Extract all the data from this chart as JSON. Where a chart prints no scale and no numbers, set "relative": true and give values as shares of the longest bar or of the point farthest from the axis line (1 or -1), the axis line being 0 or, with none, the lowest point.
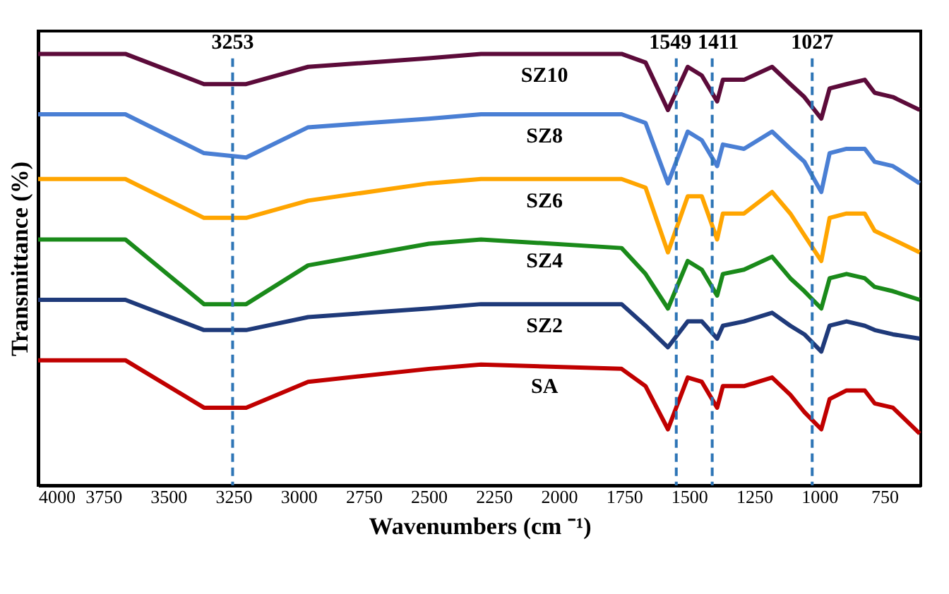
{
  "chart_data": {
    "type": "line",
    "relative": true,
    "xlabel": "Wavenumbers (cm ⁻¹)",
    "ylabel": "Transmittance (%)",
    "x": [
      4000,
      3665,
      3363,
      3201,
      2963,
      2499,
      2299,
      1759,
      1667,
      1581,
      1505,
      1451,
      1392,
      1370,
      1289,
      1181,
      1111,
      1057,
      992,
      960,
      895,
      825,
      787,
      717,
      614
    ],
    "xlim": [
      4000,
      610
    ],
    "xticks": [
      4000,
      3750,
      3500,
      3250,
      3000,
      2750,
      2500,
      2250,
      2000,
      1750,
      1500,
      1250,
      1000,
      750
    ],
    "grid": false,
    "line_style": "solid",
    "marker": "none",
    "series": [
      {
        "name": "SZ10",
        "color": "#5c0b3a",
        "values": [
          1,
          1,
          0.93,
          0.93,
          0.97,
          0.99,
          1,
          1,
          0.98,
          0.87,
          0.97,
          0.95,
          0.89,
          0.94,
          0.94,
          0.97,
          0.93,
          0.9,
          0.85,
          0.92,
          0.93,
          0.94,
          0.91,
          0.9,
          0.87
        ]
      },
      {
        "name": "SZ8",
        "color": "#4a7fd4",
        "values": [
          0.86,
          0.86,
          0.77,
          0.76,
          0.83,
          0.85,
          0.86,
          0.86,
          0.84,
          0.7,
          0.82,
          0.8,
          0.74,
          0.79,
          0.78,
          0.82,
          0.78,
          0.75,
          0.68,
          0.77,
          0.78,
          0.78,
          0.75,
          0.74,
          0.7
        ]
      },
      {
        "name": "SZ6",
        "color": "#ffa500",
        "values": [
          0.71,
          0.71,
          0.62,
          0.62,
          0.66,
          0.7,
          0.71,
          0.71,
          0.69,
          0.54,
          0.67,
          0.67,
          0.57,
          0.63,
          0.63,
          0.68,
          0.63,
          0.58,
          0.52,
          0.62,
          0.63,
          0.63,
          0.59,
          0.57,
          0.54
        ]
      },
      {
        "name": "SZ4",
        "color": "#1a8a1a",
        "values": [
          0.57,
          0.57,
          0.42,
          0.42,
          0.51,
          0.56,
          0.57,
          0.55,
          0.49,
          0.41,
          0.52,
          0.5,
          0.44,
          0.49,
          0.5,
          0.53,
          0.48,
          0.45,
          0.41,
          0.48,
          0.49,
          0.48,
          0.46,
          0.45,
          0.43
        ]
      },
      {
        "name": "SZ2",
        "color": "#1f3a7a",
        "values": [
          0.43,
          0.43,
          0.36,
          0.36,
          0.39,
          0.41,
          0.42,
          0.42,
          0.37,
          0.32,
          0.38,
          0.38,
          0.34,
          0.37,
          0.38,
          0.4,
          0.37,
          0.35,
          0.31,
          0.37,
          0.38,
          0.37,
          0.36,
          0.35,
          0.34
        ]
      },
      {
        "name": "SA",
        "color": "#c00000",
        "values": [
          0.29,
          0.29,
          0.18,
          0.18,
          0.24,
          0.27,
          0.28,
          0.27,
          0.23,
          0.13,
          0.25,
          0.24,
          0.18,
          0.23,
          0.23,
          0.25,
          0.21,
          0.17,
          0.13,
          0.2,
          0.22,
          0.22,
          0.19,
          0.18,
          0.12
        ]
      }
    ],
    "ref_lines": [
      {
        "axis": "x",
        "value": 3253,
        "label": "3253",
        "color": "#2e75b6",
        "line_style": "dashed"
      },
      {
        "axis": "x",
        "value": 1549,
        "label": "1549",
        "color": "#2e75b6",
        "line_style": "dashed"
      },
      {
        "axis": "x",
        "value": 1411,
        "label": "1411",
        "color": "#2e75b6",
        "line_style": "dashed"
      },
      {
        "axis": "x",
        "value": 1027,
        "label": "1027",
        "color": "#2e75b6",
        "line_style": "dashed"
      }
    ]
  }
}
